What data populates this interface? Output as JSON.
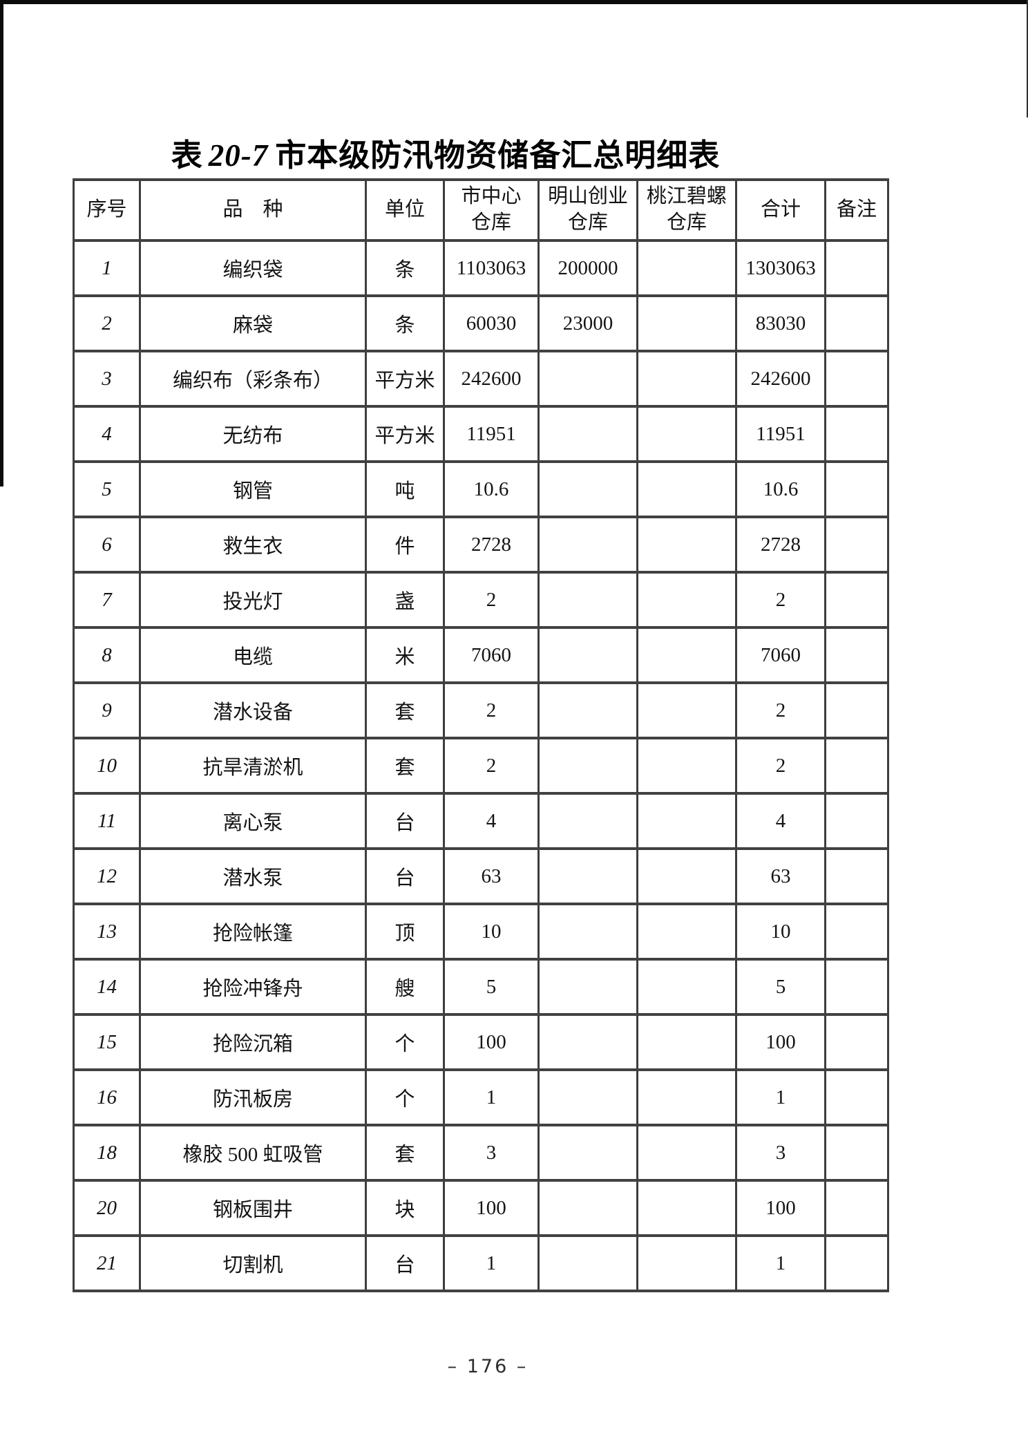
{
  "page": {
    "title_label": "表",
    "title_number": "20-7",
    "title_main": "市本级防汛物资储备汇总明细表",
    "page_number": "– 176 –"
  },
  "colors": {
    "table_border": "#3d3d3d",
    "ink": "#141414",
    "scan_artifact": "#0b0b0b"
  },
  "table": {
    "column_keys": [
      "serial",
      "item",
      "unit",
      "warehouse-city-center",
      "warehouse-mingshan-chuangye",
      "warehouse-taojiang-biluo",
      "total",
      "remarks"
    ],
    "headers": [
      "序号",
      "品　种",
      "单位",
      "市中心\n仓库",
      "明山创业\n仓库",
      "桃江碧螺\n仓库",
      "合计",
      "备注"
    ],
    "rows": [
      [
        "1",
        "编织袋",
        "条",
        "1103063",
        "200000",
        "",
        "1303063",
        ""
      ],
      [
        "2",
        "麻袋",
        "条",
        "60030",
        "23000",
        "",
        "83030",
        ""
      ],
      [
        "3",
        "编织布（彩条布）",
        "平方米",
        "242600",
        "",
        "",
        "242600",
        ""
      ],
      [
        "4",
        "无纺布",
        "平方米",
        "11951",
        "",
        "",
        "11951",
        ""
      ],
      [
        "5",
        "钢管",
        "吨",
        "10.6",
        "",
        "",
        "10.6",
        ""
      ],
      [
        "6",
        "救生衣",
        "件",
        "2728",
        "",
        "",
        "2728",
        ""
      ],
      [
        "7",
        "投光灯",
        "盏",
        "2",
        "",
        "",
        "2",
        ""
      ],
      [
        "8",
        "电缆",
        "米",
        "7060",
        "",
        "",
        "7060",
        ""
      ],
      [
        "9",
        "潜水设备",
        "套",
        "2",
        "",
        "",
        "2",
        ""
      ],
      [
        "10",
        "抗旱清淤机",
        "套",
        "2",
        "",
        "",
        "2",
        ""
      ],
      [
        "11",
        "离心泵",
        "台",
        "4",
        "",
        "",
        "4",
        ""
      ],
      [
        "12",
        "潜水泵",
        "台",
        "63",
        "",
        "",
        "63",
        ""
      ],
      [
        "13",
        "抢险帐篷",
        "顶",
        "10",
        "",
        "",
        "10",
        ""
      ],
      [
        "14",
        "抢险冲锋舟",
        "艘",
        "5",
        "",
        "",
        "5",
        ""
      ],
      [
        "15",
        "抢险沉箱",
        "个",
        "100",
        "",
        "",
        "100",
        ""
      ],
      [
        "16",
        "防汛板房",
        "个",
        "1",
        "",
        "",
        "1",
        ""
      ],
      [
        "18",
        "橡胶 500 虹吸管",
        "套",
        "3",
        "",
        "",
        "3",
        ""
      ],
      [
        "20",
        "钢板围井",
        "块",
        "100",
        "",
        "",
        "100",
        ""
      ],
      [
        "21",
        "切割机",
        "台",
        "1",
        "",
        "",
        "1",
        ""
      ]
    ]
  }
}
